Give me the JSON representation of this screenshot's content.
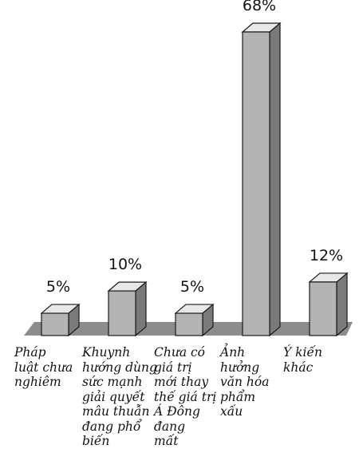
{
  "chart_data": {
    "type": "bar",
    "title": "",
    "xlabel": "",
    "ylabel": "",
    "ylim": [
      0,
      68
    ],
    "grid": false,
    "legend": "none",
    "categories": [
      [
        "Pháp",
        "luật chưa",
        "nghiêm"
      ],
      [
        "Khuynh",
        "hướng dùng",
        "sức mạnh",
        "giải quyết",
        "mâu thuẫn",
        "đang phổ",
        "biến"
      ],
      [
        "Chưa có",
        "giá trị",
        "mới thay",
        "thế giá trị",
        "Á Đông",
        "đang",
        "mất"
      ],
      [
        "Ảnh",
        "hưởng",
        "văn hóa",
        "phẩm",
        "xấu"
      ],
      [
        "Ý kiến",
        "khác"
      ]
    ],
    "values": [
      5,
      10,
      5,
      68,
      12
    ],
    "value_labels": [
      "5%",
      "10%",
      "5%",
      "68%",
      "12%"
    ],
    "colors": {
      "bar_face": "#b3b3b3",
      "bar_top": "#e8e8e8",
      "bar_side": "#7a7a7a",
      "floor": "#8c8c8c"
    }
  }
}
